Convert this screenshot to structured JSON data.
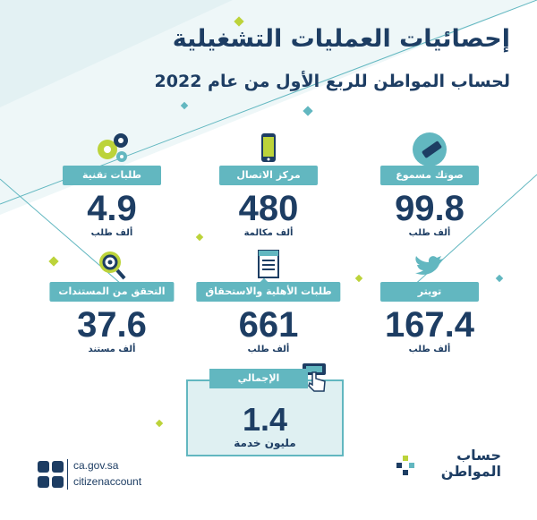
{
  "header": {
    "title": "إحصائيات العمليات التشغيلية",
    "subtitle": "لحساب المواطن للربع الأول من عام 2022"
  },
  "stats": [
    {
      "label": "صوتك مسموع",
      "value": "99.8",
      "unit": "ألف طلب",
      "icon": "megaphone-icon"
    },
    {
      "label": "مركز الاتصال",
      "value": "480",
      "unit": "ألف مكالمة",
      "icon": "phone-icon"
    },
    {
      "label": "طلبات تقنية",
      "value": "4.9",
      "unit": "ألف طلب",
      "icon": "gears-icon"
    },
    {
      "label": "تويتر",
      "value": "167.4",
      "unit": "ألف طلب",
      "icon": "twitter-bird-icon"
    },
    {
      "label": "طلبات الأهلية والاستحقاق",
      "value": "661",
      "unit": "ألف طلب",
      "icon": "document-icon"
    },
    {
      "label": "التحقق من المستندات",
      "value": "37.6",
      "unit": "ألف مستند",
      "icon": "magnifier-icon"
    }
  ],
  "total": {
    "label": "الإجمالي",
    "value": "1.4",
    "unit": "مليون خدمة",
    "icon": "hand-tap-icon"
  },
  "footer": {
    "website": "ca.gov.sa",
    "handle": "citizenaccount"
  },
  "logo": {
    "line1": "حساب",
    "line2": "المواطن"
  },
  "colors": {
    "navy": "#1d3d63",
    "teal": "#62b7c0",
    "light_teal": "#dff0f2",
    "lime": "#bcd33a"
  }
}
